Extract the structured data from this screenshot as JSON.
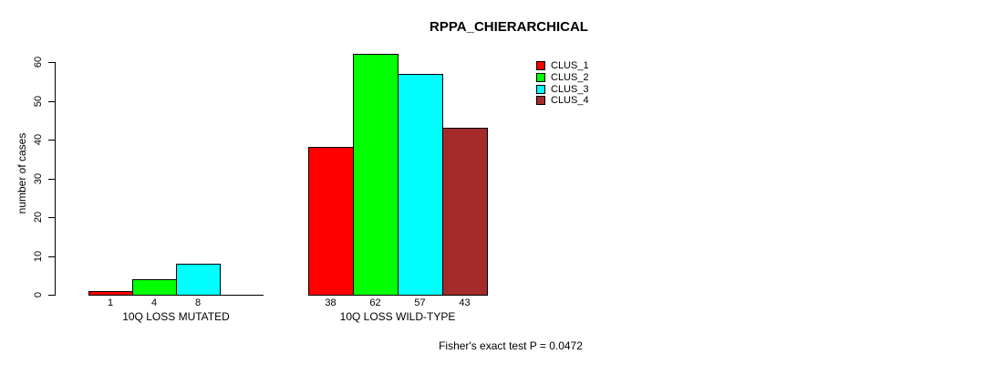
{
  "title": "RPPA_CHIERARCHICAL",
  "y_axis": {
    "label": "number of cases",
    "ticks": [
      0,
      10,
      20,
      30,
      40,
      50,
      60
    ]
  },
  "legend": {
    "items": [
      {
        "label": "CLUS_1",
        "color": "#FF0000"
      },
      {
        "label": "CLUS_2",
        "color": "#00FF00"
      },
      {
        "label": "CLUS_3",
        "color": "#00FFFF"
      },
      {
        "label": "CLUS_4",
        "color": "#A52A2A"
      }
    ]
  },
  "footer": {
    "stat_text": "Fisher's exact test P = 0.0472"
  },
  "chart_data": {
    "type": "bar",
    "title": "RPPA_CHIERARCHICAL",
    "ylabel": "number of cases",
    "ylim": [
      0,
      60
    ],
    "grid": false,
    "legend_position": "top-right",
    "categories": [
      "10Q LOSS MUTATED",
      "10Q LOSS WILD-TYPE"
    ],
    "series": [
      {
        "name": "CLUS_1",
        "color": "#FF0000",
        "values": [
          1,
          38
        ]
      },
      {
        "name": "CLUS_2",
        "color": "#00FF00",
        "values": [
          4,
          62
        ]
      },
      {
        "name": "CLUS_3",
        "color": "#00FFFF",
        "values": [
          8,
          57
        ]
      },
      {
        "name": "CLUS_4",
        "color": "#A52A2A",
        "values": [
          0,
          43
        ]
      }
    ],
    "value_labels": {
      "shown_when_positive": true
    },
    "annotation": "Fisher's exact test P = 0.0472"
  }
}
